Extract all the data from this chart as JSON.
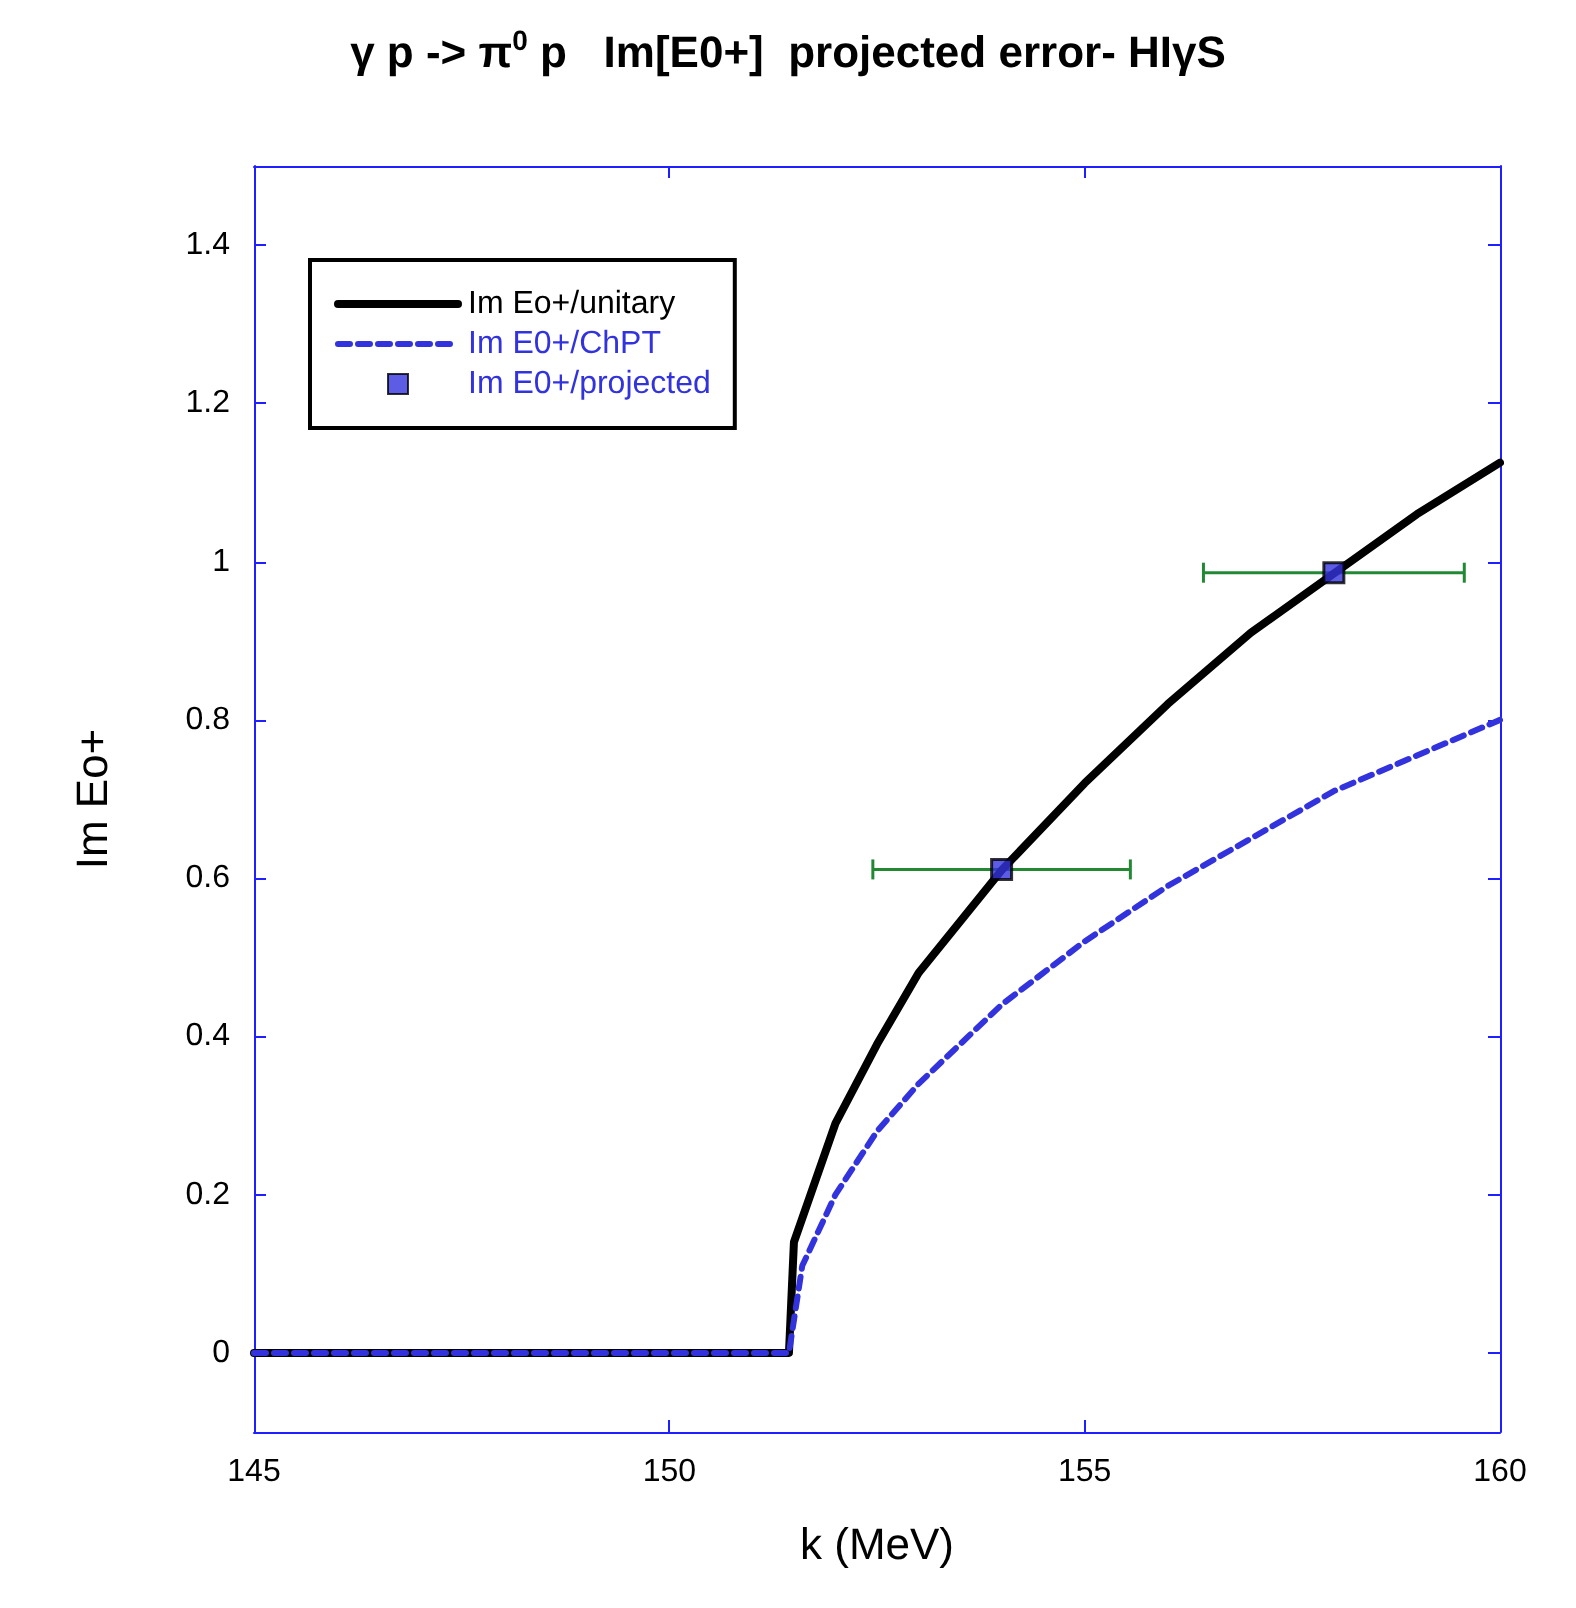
{
  "chart_data": {
    "type": "line",
    "title": "γ p -> π$^{0}$ p   Im[E0+]  projected error- HIγS",
    "xlabel": "k (MeV)",
    "ylabel": "Im Eo+",
    "xlim": [
      145,
      160
    ],
    "xticks": [
      145,
      150,
      155,
      160
    ],
    "ylim": [
      -0.1,
      1.5
    ],
    "yticks": [
      0,
      0.2,
      0.4,
      0.6,
      0.8,
      1,
      1.2,
      1.4
    ],
    "grid": false,
    "legend": "top left",
    "series": [
      {
        "name": "Im Eo+/unitary",
        "color": "#000000",
        "line_style": "solid",
        "marker": "none",
        "x": [
          145,
          151.44,
          151.5,
          151.6,
          152,
          152.5,
          153,
          154,
          155,
          156,
          157,
          158,
          159,
          160
        ],
        "values": [
          0,
          0,
          0.14,
          0.17,
          0.29,
          0.39,
          0.48,
          0.61,
          0.72,
          0.82,
          0.91,
          0.985,
          1.06,
          1.125
        ]
      },
      {
        "name": "Im E0+/ChPT",
        "color": "#3333dd",
        "line_style": "dashed",
        "marker": "none",
        "x": [
          145,
          151.44,
          151.6,
          152,
          152.5,
          153,
          154,
          155,
          156,
          157,
          158,
          159,
          160
        ],
        "values": [
          0,
          0,
          0.11,
          0.2,
          0.28,
          0.34,
          0.44,
          0.52,
          0.59,
          0.65,
          0.71,
          0.755,
          0.8
        ]
      },
      {
        "name": "Im E0+/projected",
        "type": "scatter",
        "color": "#3333dd",
        "marker": "square",
        "x": [
          154,
          158
        ],
        "values": [
          0.611,
          0.986
        ],
        "xerrors": [
          1.55,
          1.57
        ]
      }
    ]
  }
}
